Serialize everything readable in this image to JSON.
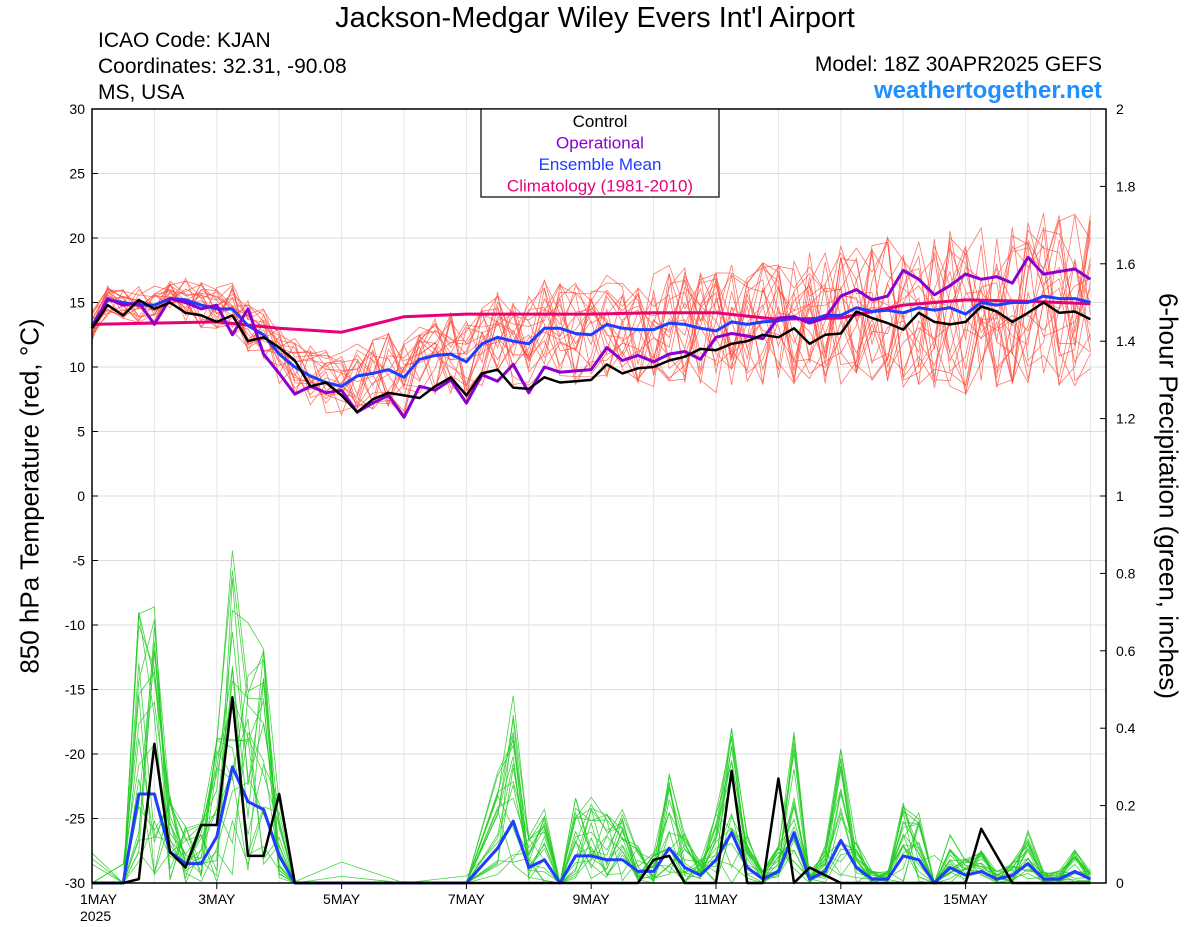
{
  "header": {
    "title": "Jackson-Medgar Wiley Evers Int'l Airport",
    "icao": "ICAO Code: KJAN",
    "coordinates": "Coordinates: 32.31, -90.08",
    "region": "MS, USA",
    "model": "Model: 18Z 30APR2025 GEFS",
    "site": "weathertogether.net"
  },
  "colors": {
    "control": "#000000",
    "operational": "#8b00d0",
    "ensemble_mean": "#1f3cff",
    "climatology": "#e8007a",
    "members_temp": "#ff4a3a",
    "members_precip": "#22cc22",
    "site": "#1e90ff"
  },
  "chart_data": {
    "type": "line",
    "ylabel_left": "850 hPa Temperature (red, °C)",
    "ylabel_right": "6-hour Precipitation (green, inches)",
    "xlabels": [
      "1MAY",
      "3MAY",
      "5MAY",
      "7MAY",
      "9MAY",
      "11MAY",
      "13MAY",
      "15MAY"
    ],
    "xlabel_year": "2025",
    "x_unit": "days since 1MAY 00Z",
    "xlim": [
      0,
      16.25
    ],
    "ylim_left": [
      -30,
      30
    ],
    "yticks_left": [
      30,
      25,
      20,
      15,
      10,
      5,
      0,
      -5,
      -10,
      -15,
      -20,
      -25,
      -30
    ],
    "ylim_right": [
      0,
      2
    ],
    "yticks_right": [
      "2",
      "1.8",
      "1.6",
      "1.4",
      "1.2",
      "1",
      "0.8",
      "0.6",
      "0.4",
      "0.2",
      "0"
    ],
    "legend": [
      "Control",
      "Operational",
      "Ensemble Mean",
      "Climatology (1981-2010)"
    ],
    "legend_position": "top-center",
    "grid": true,
    "temperature": {
      "control": [
        [
          0,
          13
        ],
        [
          0.25,
          14.8
        ],
        [
          0.5,
          14
        ],
        [
          0.75,
          15.2
        ],
        [
          1,
          14.5
        ],
        [
          1.25,
          15
        ],
        [
          1.5,
          14.2
        ],
        [
          1.75,
          14
        ],
        [
          2,
          13.5
        ],
        [
          2.25,
          14
        ],
        [
          2.5,
          12
        ],
        [
          2.75,
          12.3
        ],
        [
          3,
          11.5
        ],
        [
          3.25,
          10.5
        ],
        [
          3.5,
          8.5
        ],
        [
          3.75,
          8.8
        ],
        [
          4,
          7.8
        ],
        [
          4.25,
          6.5
        ],
        [
          4.5,
          7.5
        ],
        [
          4.75,
          8
        ],
        [
          5,
          7.8
        ],
        [
          5.25,
          7.6
        ],
        [
          5.5,
          8.5
        ],
        [
          5.75,
          9.2
        ],
        [
          6,
          7.8
        ],
        [
          6.25,
          9.5
        ],
        [
          6.5,
          9.8
        ],
        [
          6.75,
          8.4
        ],
        [
          7,
          8.3
        ],
        [
          7.25,
          9.2
        ],
        [
          7.5,
          8.8
        ],
        [
          7.75,
          8.9
        ],
        [
          8,
          9
        ],
        [
          8.25,
          10.2
        ],
        [
          8.5,
          9.5
        ],
        [
          8.75,
          9.9
        ],
        [
          9,
          10
        ],
        [
          9.25,
          10.5
        ],
        [
          9.5,
          10.8
        ],
        [
          9.75,
          11.4
        ],
        [
          10,
          11.3
        ],
        [
          10.25,
          11.8
        ],
        [
          10.5,
          12
        ],
        [
          10.75,
          12.5
        ],
        [
          11,
          12.3
        ],
        [
          11.25,
          13
        ],
        [
          11.5,
          11.8
        ],
        [
          11.75,
          12.5
        ],
        [
          12,
          12.6
        ],
        [
          12.25,
          14.3
        ],
        [
          12.5,
          13.8
        ],
        [
          12.75,
          13.4
        ],
        [
          13,
          12.9
        ],
        [
          13.25,
          14.2
        ],
        [
          13.5,
          13.5
        ],
        [
          13.75,
          13.3
        ],
        [
          14,
          13.5
        ],
        [
          14.25,
          14.7
        ],
        [
          14.5,
          14.3
        ],
        [
          14.75,
          13.5
        ],
        [
          15,
          14.2
        ],
        [
          15.25,
          15
        ],
        [
          15.5,
          14.2
        ],
        [
          15.75,
          14.3
        ],
        [
          16,
          13.7
        ]
      ],
      "operational": [
        [
          0,
          13
        ],
        [
          0.25,
          15.3
        ],
        [
          0.5,
          14.8
        ],
        [
          0.75,
          15
        ],
        [
          1,
          13.3
        ],
        [
          1.25,
          15.3
        ],
        [
          1.5,
          15
        ],
        [
          1.75,
          14.5
        ],
        [
          2,
          14.8
        ],
        [
          2.25,
          12.5
        ],
        [
          2.5,
          14.5
        ],
        [
          2.75,
          11
        ],
        [
          3,
          9.5
        ],
        [
          3.25,
          7.9
        ],
        [
          3.5,
          8.5
        ],
        [
          3.75,
          8
        ],
        [
          4,
          8.2
        ],
        [
          4.25,
          6.5
        ],
        [
          4.5,
          7.2
        ],
        [
          4.75,
          7.8
        ],
        [
          5,
          6.1
        ],
        [
          5.25,
          8.5
        ],
        [
          5.5,
          8.2
        ],
        [
          5.75,
          9
        ],
        [
          6,
          7.2
        ],
        [
          6.25,
          9.4
        ],
        [
          6.5,
          8.9
        ],
        [
          6.75,
          10.2
        ],
        [
          7,
          8
        ],
        [
          7.25,
          10
        ],
        [
          7.5,
          9.6
        ],
        [
          7.75,
          9.7
        ],
        [
          8,
          9.8
        ],
        [
          8.25,
          11.5
        ],
        [
          8.5,
          10.5
        ],
        [
          8.75,
          10.9
        ],
        [
          9,
          10.4
        ],
        [
          9.25,
          11
        ],
        [
          9.5,
          11.2
        ],
        [
          9.75,
          10.6
        ],
        [
          10,
          12.3
        ],
        [
          10.25,
          12.6
        ],
        [
          10.5,
          12.4
        ],
        [
          10.75,
          12.2
        ],
        [
          11,
          13.8
        ],
        [
          11.25,
          13.9
        ],
        [
          11.5,
          13.4
        ],
        [
          11.75,
          13.8
        ],
        [
          12,
          15.5
        ],
        [
          12.25,
          16
        ],
        [
          12.5,
          15.2
        ],
        [
          12.75,
          15.5
        ],
        [
          13,
          17.5
        ],
        [
          13.25,
          16.8
        ],
        [
          13.5,
          15.6
        ],
        [
          13.75,
          16.3
        ],
        [
          14,
          17.2
        ],
        [
          14.25,
          16.8
        ],
        [
          14.5,
          17
        ],
        [
          14.75,
          16.5
        ],
        [
          15,
          18.5
        ],
        [
          15.25,
          17.2
        ],
        [
          15.5,
          17.4
        ],
        [
          15.75,
          17.6
        ],
        [
          16,
          16.8
        ]
      ],
      "ensemble_mean": [
        [
          0,
          13.2
        ],
        [
          0.25,
          15.2
        ],
        [
          0.5,
          15
        ],
        [
          0.75,
          14.8
        ],
        [
          1,
          14.8
        ],
        [
          1.25,
          15.3
        ],
        [
          1.5,
          15.2
        ],
        [
          1.75,
          14.8
        ],
        [
          2,
          14.5
        ],
        [
          2.25,
          14.5
        ],
        [
          2.5,
          13.2
        ],
        [
          2.75,
          12.5
        ],
        [
          3,
          11
        ],
        [
          3.25,
          10
        ],
        [
          3.5,
          9.3
        ],
        [
          3.75,
          8.8
        ],
        [
          4,
          8.5
        ],
        [
          4.25,
          9.3
        ],
        [
          4.5,
          9.5
        ],
        [
          4.75,
          9.8
        ],
        [
          5,
          9.2
        ],
        [
          5.25,
          10.6
        ],
        [
          5.5,
          10.9
        ],
        [
          5.75,
          11
        ],
        [
          6,
          10.4
        ],
        [
          6.25,
          11.8
        ],
        [
          6.5,
          12.3
        ],
        [
          6.75,
          12
        ],
        [
          7,
          11.8
        ],
        [
          7.25,
          13
        ],
        [
          7.5,
          13
        ],
        [
          7.75,
          12.6
        ],
        [
          8,
          12.5
        ],
        [
          8.25,
          13.3
        ],
        [
          8.5,
          13
        ],
        [
          8.75,
          12.9
        ],
        [
          9,
          12.9
        ],
        [
          9.25,
          13.4
        ],
        [
          9.5,
          13.3
        ],
        [
          9.75,
          13
        ],
        [
          10,
          12.8
        ],
        [
          10.25,
          13.5
        ],
        [
          10.5,
          13.3
        ],
        [
          10.75,
          13.5
        ],
        [
          11,
          13.6
        ],
        [
          11.25,
          13.8
        ],
        [
          11.5,
          13.6
        ],
        [
          11.75,
          14
        ],
        [
          12,
          14
        ],
        [
          12.25,
          14.6
        ],
        [
          12.5,
          14.3
        ],
        [
          12.75,
          14.4
        ],
        [
          13,
          14.2
        ],
        [
          13.25,
          14.6
        ],
        [
          13.5,
          14.4
        ],
        [
          13.75,
          14.6
        ],
        [
          14,
          14.1
        ],
        [
          14.25,
          15
        ],
        [
          14.5,
          14.8
        ],
        [
          14.75,
          15
        ],
        [
          15,
          15
        ],
        [
          15.25,
          15.5
        ],
        [
          15.5,
          15.3
        ],
        [
          15.75,
          15.3
        ],
        [
          16,
          15
        ]
      ],
      "climatology": [
        [
          0,
          13.3
        ],
        [
          1,
          13.4
        ],
        [
          2,
          13.5
        ],
        [
          3,
          13
        ],
        [
          4,
          12.7
        ],
        [
          5,
          13.9
        ],
        [
          6,
          14.1
        ],
        [
          7,
          14.1
        ],
        [
          8,
          14.1
        ],
        [
          9,
          14.2
        ],
        [
          10,
          14.2
        ],
        [
          11,
          13.7
        ],
        [
          12,
          13.8
        ],
        [
          13,
          14.8
        ],
        [
          14,
          15.2
        ],
        [
          15,
          15.1
        ],
        [
          16,
          14.9
        ]
      ]
    },
    "precipitation": {
      "control": [
        [
          0,
          0
        ],
        [
          0.5,
          0
        ],
        [
          0.75,
          0.01
        ],
        [
          1,
          0.36
        ],
        [
          1.25,
          0.08
        ],
        [
          1.5,
          0.04
        ],
        [
          1.75,
          0.15
        ],
        [
          2,
          0.15
        ],
        [
          2.25,
          0.48
        ],
        [
          2.5,
          0.07
        ],
        [
          2.75,
          0.07
        ],
        [
          3,
          0.23
        ],
        [
          3.25,
          0
        ],
        [
          3.5,
          0
        ],
        [
          4,
          0
        ],
        [
          6,
          0
        ],
        [
          8,
          0
        ],
        [
          8.5,
          0
        ],
        [
          8.75,
          0
        ],
        [
          9,
          0.06
        ],
        [
          9.25,
          0.07
        ],
        [
          9.5,
          0
        ],
        [
          10,
          0
        ],
        [
          10.25,
          0.29
        ],
        [
          10.5,
          0
        ],
        [
          10.75,
          0
        ],
        [
          11,
          0.27
        ],
        [
          11.25,
          0
        ],
        [
          11.5,
          0.04
        ],
        [
          11.75,
          0.02
        ],
        [
          12,
          0
        ],
        [
          12.5,
          0
        ],
        [
          13,
          0
        ],
        [
          14,
          0
        ],
        [
          14.25,
          0.14
        ],
        [
          14.5,
          0.07
        ],
        [
          14.75,
          0
        ],
        [
          15,
          0
        ],
        [
          16,
          0
        ]
      ],
      "ensemble_mean": [
        [
          0,
          0
        ],
        [
          0.5,
          0
        ],
        [
          0.75,
          0.23
        ],
        [
          1,
          0.23
        ],
        [
          1.25,
          0.08
        ],
        [
          1.5,
          0.05
        ],
        [
          1.75,
          0.05
        ],
        [
          2,
          0.12
        ],
        [
          2.25,
          0.3
        ],
        [
          2.5,
          0.21
        ],
        [
          2.75,
          0.19
        ],
        [
          3,
          0.07
        ],
        [
          3.25,
          0
        ],
        [
          4,
          0
        ],
        [
          5,
          0
        ],
        [
          6,
          0
        ],
        [
          6.5,
          0.09
        ],
        [
          6.75,
          0.16
        ],
        [
          7,
          0.04
        ],
        [
          7.25,
          0.06
        ],
        [
          7.5,
          0
        ],
        [
          7.75,
          0.07
        ],
        [
          8,
          0.07
        ],
        [
          8.25,
          0.06
        ],
        [
          8.5,
          0.06
        ],
        [
          8.75,
          0.03
        ],
        [
          9,
          0.03
        ],
        [
          9.25,
          0.09
        ],
        [
          9.5,
          0.04
        ],
        [
          9.75,
          0.02
        ],
        [
          10,
          0.06
        ],
        [
          10.25,
          0.13
        ],
        [
          10.5,
          0.04
        ],
        [
          10.75,
          0.01
        ],
        [
          11,
          0.03
        ],
        [
          11.25,
          0.13
        ],
        [
          11.5,
          0.01
        ],
        [
          11.75,
          0.03
        ],
        [
          12,
          0.11
        ],
        [
          12.25,
          0.04
        ],
        [
          12.5,
          0.01
        ],
        [
          12.75,
          0.01
        ],
        [
          13,
          0.07
        ],
        [
          13.25,
          0.06
        ],
        [
          13.5,
          0
        ],
        [
          13.75,
          0.04
        ],
        [
          14,
          0.02
        ],
        [
          14.25,
          0.03
        ],
        [
          14.5,
          0.01
        ],
        [
          14.75,
          0.02
        ],
        [
          15,
          0.05
        ],
        [
          15.25,
          0.01
        ],
        [
          15.5,
          0.01
        ],
        [
          15.75,
          0.03
        ],
        [
          16,
          0.01
        ]
      ]
    }
  }
}
